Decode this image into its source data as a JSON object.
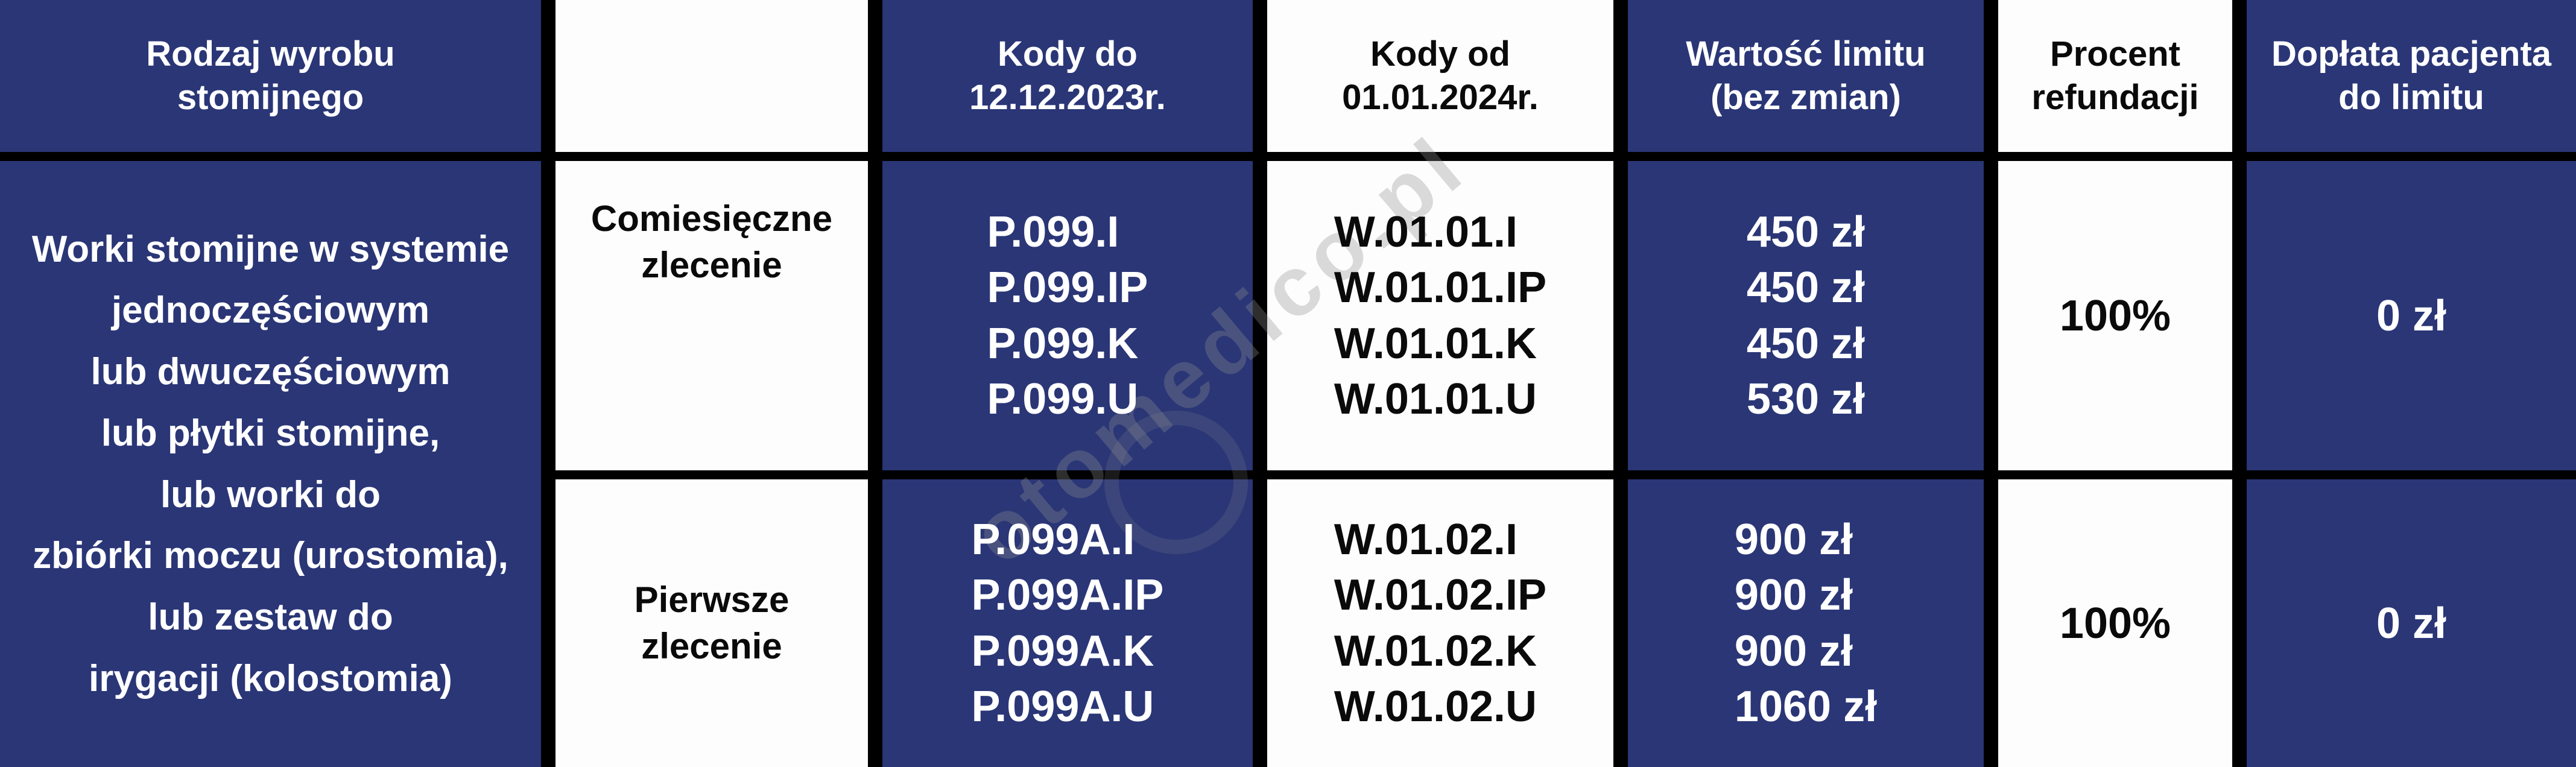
{
  "table": {
    "header": [
      "Rodzaj wyrobu\nstomijnego",
      "",
      "Kody do\n12.12.2023r.",
      "Kody od\n01.01.2024r.",
      "Wartość limitu\n(bez zmian)",
      "Procent\nrefundacji",
      "Dopłata pacjenta\ndo limitu"
    ],
    "product": "Worki stomijne w systemie\njednoczęściowym\nlub dwuczęściowym\nlub płytki stomijne,\nlub worki do\nzbiórki moczu (urostomia),\nlub zestaw do\nirygacji (kolostomia)",
    "rows": [
      {
        "order_type": "Comiesięczne\nzlecenie",
        "codes_old": "P.099.I\nP.099.IP\nP.099.K\nP.099.U",
        "codes_new": "W.01.01.I\nW.01.01.IP\nW.01.01.K\nW.01.01.U",
        "limit_value": "450 zł\n450 zł\n450 zł\n530 zł",
        "refund_percent": "100%",
        "patient_copay": "0 zł"
      },
      {
        "order_type": "Pierwsze\nzlecenie",
        "codes_old": "P.099A.I\nP.099A.IP\nP.099A.K\nP.099A.U",
        "codes_new": "W.01.02.I\nW.01.02.IP\nW.01.02.K\nW.01.02.U",
        "limit_value": "900 zł\n900 zł\n900 zł\n1060 zł",
        "refund_percent": "100%",
        "patient_copay": "0 zł"
      }
    ]
  },
  "watermark": {
    "text": "otomedico.pl"
  },
  "colors": {
    "navy": "#2a3676",
    "white": "#fdfdfd",
    "gridline_black": "#000000",
    "watermark_gray": "#8f8f8f"
  }
}
